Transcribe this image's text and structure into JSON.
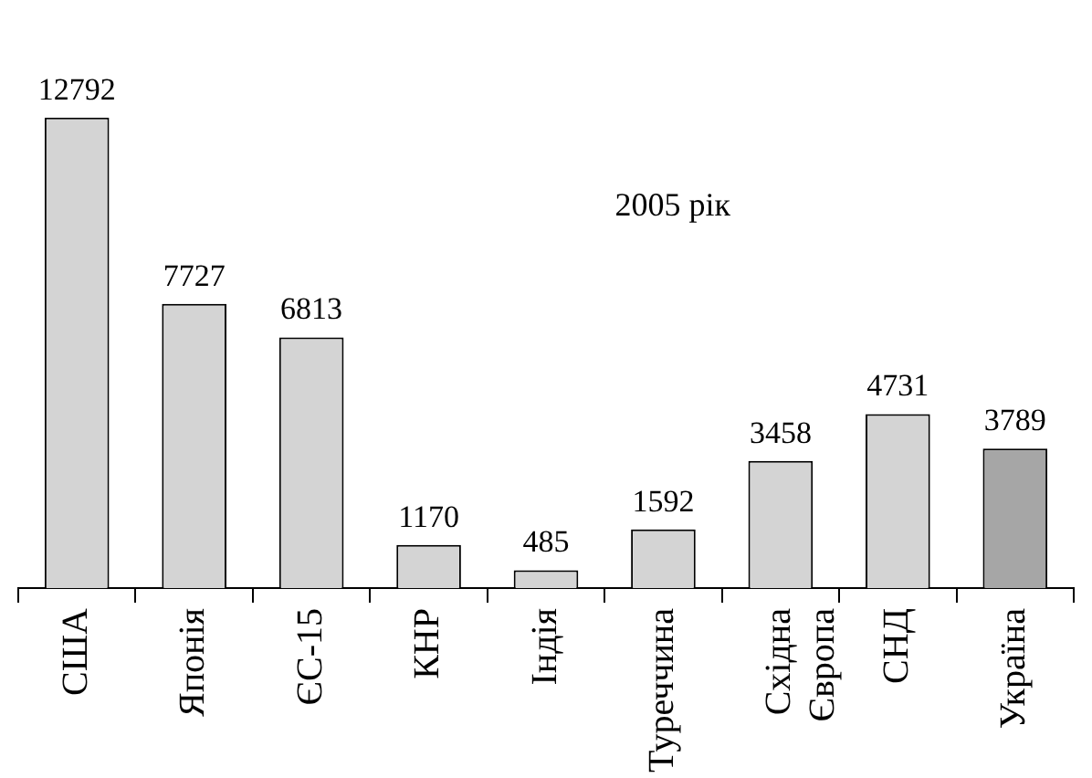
{
  "chart_data": {
    "type": "bar",
    "title": "2005 рік",
    "categories": [
      "США",
      "Японія",
      "ЄС-15",
      "КНР",
      "Індія",
      "Туреччина",
      "Східна Європа",
      "СНД",
      "Україна"
    ],
    "values": [
      12792,
      7727,
      6813,
      1170,
      485,
      1592,
      3458,
      4731,
      3789
    ],
    "colors": [
      "#d4d4d4",
      "#d4d4d4",
      "#d4d4d4",
      "#d4d4d4",
      "#d4d4d4",
      "#d4d4d4",
      "#d4d4d4",
      "#d4d4d4",
      "#a6a6a6"
    ],
    "data_labels": true,
    "grid": false,
    "legend": false
  }
}
